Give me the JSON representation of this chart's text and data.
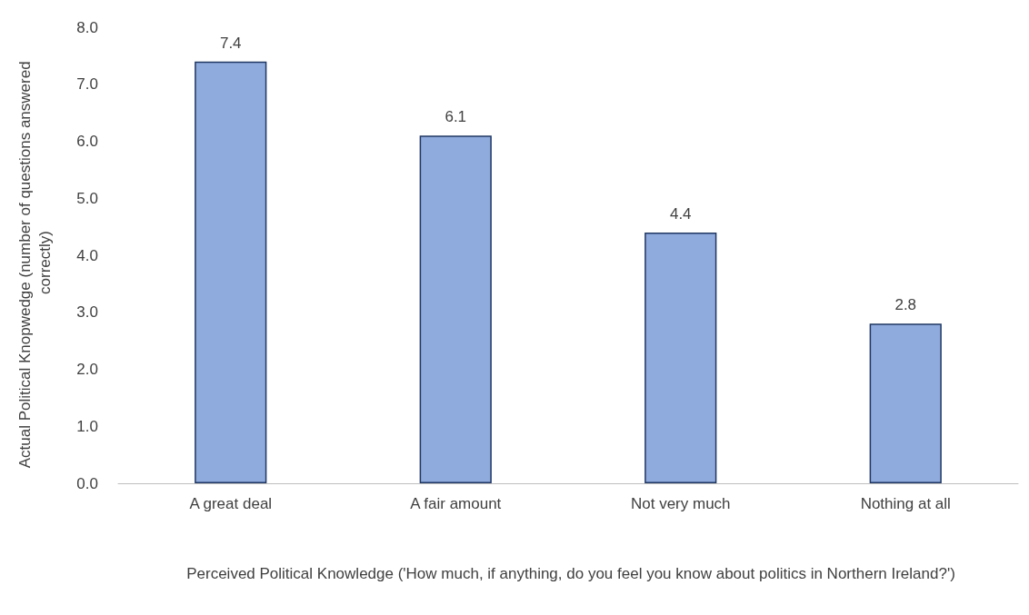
{
  "chart_data": {
    "type": "bar",
    "xlabel": "Perceived Political Knowledge ('How much, if anything, do you feel you know about politics in Northern Ireland?')",
    "ylabel": "Actual Political Knopwedge (number of questions answered correctly)",
    "categories": [
      "A great deal",
      "A fair amount",
      "Not very much",
      "Nothing at all"
    ],
    "values": [
      7.4,
      6.1,
      4.4,
      2.8
    ],
    "color": "#8faadc",
    "data_labels": true,
    "grid": false,
    "ylim": [
      0,
      8
    ],
    "yticks": [
      {
        "value": 0,
        "label": "0.0"
      },
      {
        "value": 1,
        "label": "1.0"
      },
      {
        "value": 2,
        "label": "2.0"
      },
      {
        "value": 3,
        "label": "3.0"
      },
      {
        "value": 4,
        "label": "4.0"
      },
      {
        "value": 5,
        "label": "5.0"
      },
      {
        "value": 6,
        "label": "6.0"
      },
      {
        "value": 7,
        "label": "7.0"
      },
      {
        "value": 8,
        "label": "8.0"
      }
    ]
  }
}
